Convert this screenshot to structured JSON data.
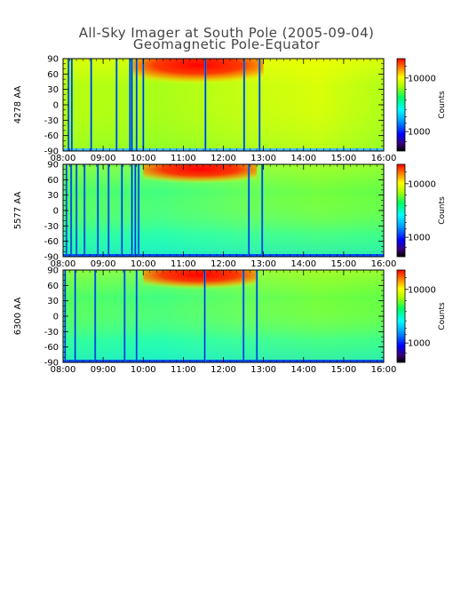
{
  "chart_data": {
    "type": "heatmap",
    "title": "All-Sky Imager at South Pole (2005-09-04)",
    "subtitle": "Geomagnetic Pole-Equator",
    "xticks": [
      "08:00",
      "09:00",
      "10:00",
      "11:00",
      "12:00",
      "13:00",
      "14:00",
      "15:00",
      "16:00"
    ],
    "yticks": [
      "90",
      "60",
      "30",
      "0",
      "-30",
      "-60",
      "-90"
    ],
    "xlim": [
      "08:00",
      "16:00"
    ],
    "ylim": [
      -90,
      90
    ],
    "colorbar": {
      "label": "Counts",
      "ticks": [
        "10000",
        "1000"
      ],
      "scale": "log"
    },
    "panels": [
      {
        "ylabel": "4278 AA",
        "dark_times": [
          "08:08",
          "08:13",
          "08:42",
          "09:20",
          "09:40",
          "09:43",
          "09:50",
          "10:00",
          "11:33",
          "12:31",
          "12:54"
        ],
        "bright_region": {
          "time_range": [
            "09:45",
            "13:00"
          ],
          "lat_range": [
            50,
            90
          ]
        },
        "background": "yellow-green"
      },
      {
        "ylabel": "5577 AA",
        "dark_times": [
          "08:05",
          "08:12",
          "08:20",
          "08:32",
          "08:52",
          "09:08",
          "09:28",
          "09:43",
          "09:48",
          "09:53",
          "12:38",
          "12:58"
        ],
        "bright_region": {
          "time_range": [
            "10:00",
            "12:50"
          ],
          "lat_range": [
            60,
            90
          ]
        },
        "background": "green-cyan"
      },
      {
        "ylabel": "6300 AA",
        "dark_times": [
          "08:03",
          "08:18",
          "08:48",
          "09:32",
          "09:50",
          "11:32",
          "12:30",
          "12:50"
        ],
        "bright_region": {
          "time_range": [
            "10:00",
            "12:50"
          ],
          "lat_range": [
            60,
            90
          ]
        },
        "background": "green-cyan"
      }
    ],
    "grid": false,
    "legend": "colorbar right of each panel"
  }
}
